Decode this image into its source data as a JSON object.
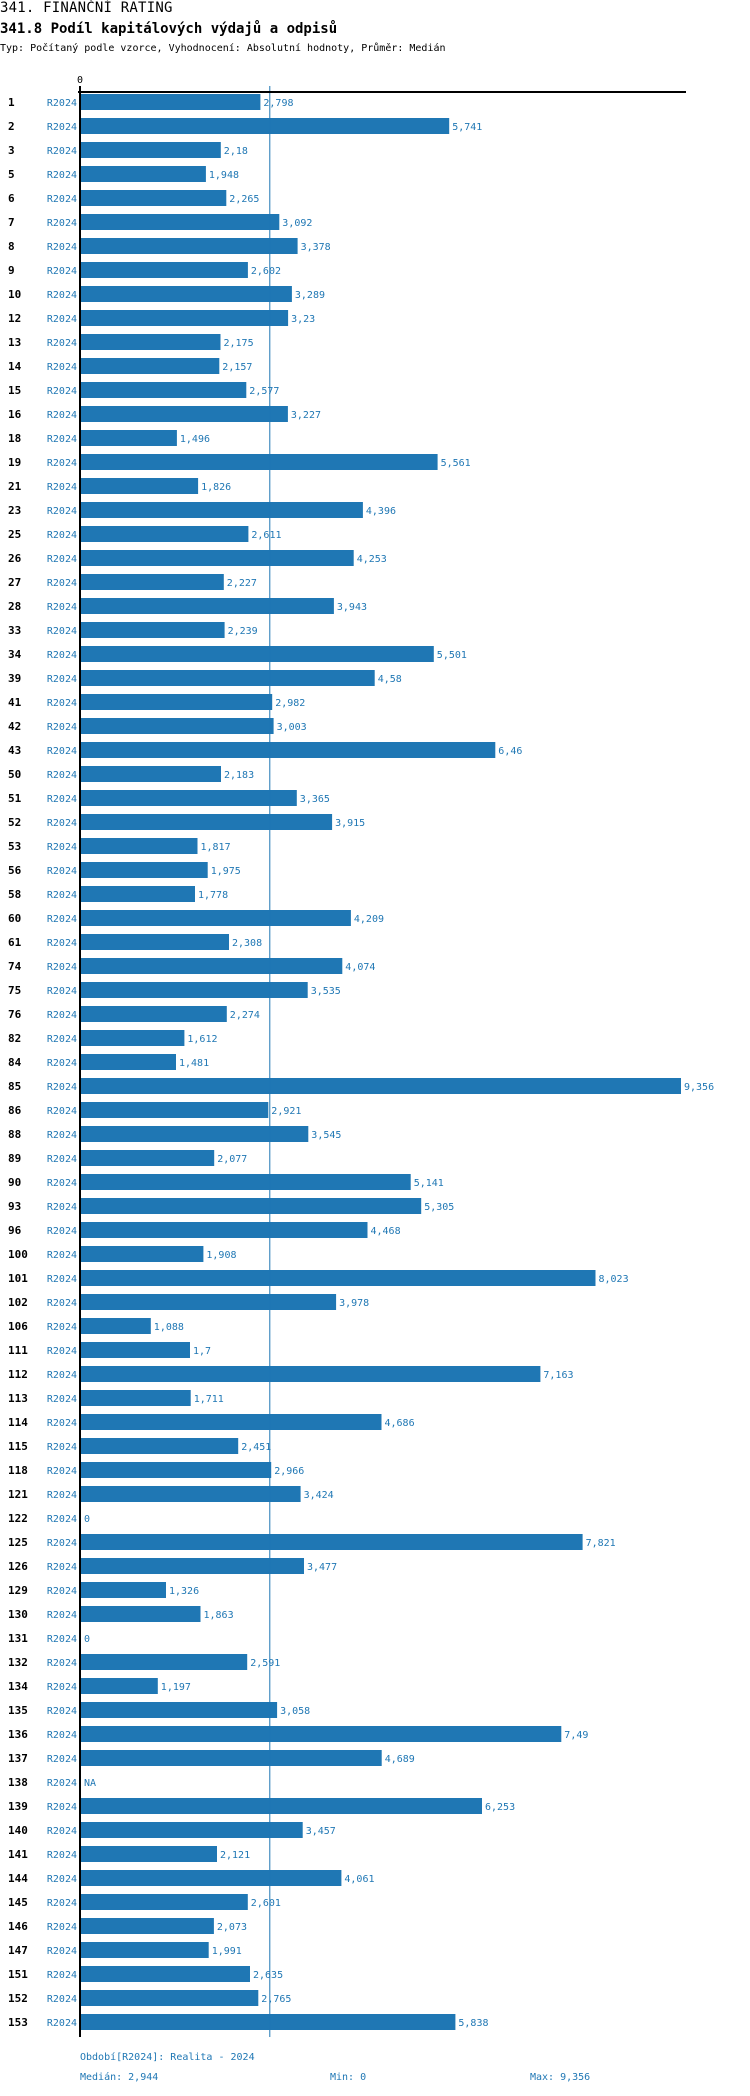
{
  "header": {
    "title": "341. FINANČNÍ RATING",
    "subtitle": "341.8 Podíl kapitálových výdajů a odpisů",
    "description": "Typ: Počítaný podle vzorce, Vyhodnocení: Absolutní hodnoty, Průměr: Medián"
  },
  "colors": {
    "bar": "#1f77b4",
    "label": "#1f77b4",
    "axis": "#000000",
    "median_line": "#1f77b4"
  },
  "chart_data": {
    "type": "bar",
    "orientation": "horizontal",
    "title": "341.8 Podíl kapitálových výdajů a odpisů",
    "xlabel": "",
    "ylabel": "",
    "x_tick_labels": [
      "0"
    ],
    "xlim": [
      0,
      9.356
    ],
    "period_label": "R2024",
    "median": 2.944,
    "categories": [
      "1",
      "2",
      "3",
      "5",
      "6",
      "7",
      "8",
      "9",
      "10",
      "12",
      "13",
      "14",
      "15",
      "16",
      "18",
      "19",
      "21",
      "23",
      "25",
      "26",
      "27",
      "28",
      "33",
      "34",
      "39",
      "41",
      "42",
      "43",
      "50",
      "51",
      "52",
      "53",
      "56",
      "58",
      "60",
      "61",
      "74",
      "75",
      "76",
      "82",
      "84",
      "85",
      "86",
      "88",
      "89",
      "90",
      "93",
      "96",
      "100",
      "101",
      "102",
      "106",
      "111",
      "112",
      "113",
      "114",
      "115",
      "118",
      "121",
      "122",
      "125",
      "126",
      "129",
      "130",
      "131",
      "132",
      "134",
      "135",
      "136",
      "137",
      "138",
      "139",
      "140",
      "141",
      "144",
      "145",
      "146",
      "147",
      "151",
      "152",
      "153"
    ],
    "values": [
      2.798,
      5.741,
      2.18,
      1.948,
      2.265,
      3.092,
      3.378,
      2.602,
      3.289,
      3.23,
      2.175,
      2.157,
      2.577,
      3.227,
      1.496,
      5.561,
      1.826,
      4.396,
      2.611,
      4.253,
      2.227,
      3.943,
      2.239,
      5.501,
      4.58,
      2.982,
      3.003,
      6.46,
      2.183,
      3.365,
      3.915,
      1.817,
      1.975,
      1.778,
      4.209,
      2.308,
      4.074,
      3.535,
      2.274,
      1.612,
      1.481,
      9.356,
      2.921,
      3.545,
      2.077,
      5.141,
      5.305,
      4.468,
      1.908,
      8.023,
      3.978,
      1.088,
      1.7,
      7.163,
      1.711,
      4.686,
      2.451,
      2.966,
      3.424,
      0,
      7.821,
      3.477,
      1.326,
      1.863,
      0,
      2.591,
      1.197,
      3.058,
      7.49,
      4.689,
      null,
      6.253,
      3.457,
      2.121,
      4.061,
      2.601,
      2.073,
      1.991,
      2.635,
      2.765,
      5.838
    ],
    "value_labels": [
      "2,798",
      "5,741",
      "2,18",
      "1,948",
      "2,265",
      "3,092",
      "3,378",
      "2,602",
      "3,289",
      "3,23",
      "2,175",
      "2,157",
      "2,577",
      "3,227",
      "1,496",
      "5,561",
      "1,826",
      "4,396",
      "2,611",
      "4,253",
      "2,227",
      "3,943",
      "2,239",
      "5,501",
      "4,58",
      "2,982",
      "3,003",
      "6,46",
      "2,183",
      "3,365",
      "3,915",
      "1,817",
      "1,975",
      "1,778",
      "4,209",
      "2,308",
      "4,074",
      "3,535",
      "2,274",
      "1,612",
      "1,481",
      "9,356",
      "2,921",
      "3,545",
      "2,077",
      "5,141",
      "5,305",
      "4,468",
      "1,908",
      "8,023",
      "3,978",
      "1,088",
      "1,7",
      "7,163",
      "1,711",
      "4,686",
      "2,451",
      "2,966",
      "3,424",
      "0",
      "7,821",
      "3,477",
      "1,326",
      "1,863",
      "0",
      "2,591",
      "1,197",
      "3,058",
      "7,49",
      "4,689",
      "NA",
      "6,253",
      "3,457",
      "2,121",
      "4,061",
      "2,601",
      "2,073",
      "1,991",
      "2,635",
      "2,765",
      "5,838"
    ]
  },
  "footer": {
    "period": "Období[R2024]: Realita - 2024",
    "median": "Medián: 2,944",
    "min": "Min: 0",
    "max": "Max: 9,356"
  }
}
